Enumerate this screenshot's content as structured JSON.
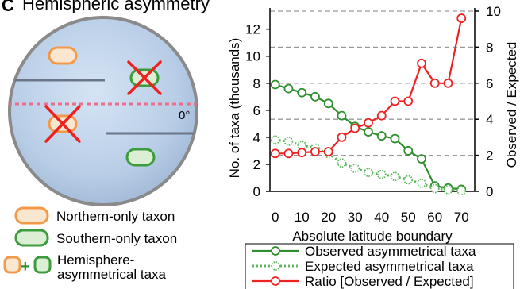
{
  "panel": {
    "label": "C",
    "title": "Hemispheric asymmetry"
  },
  "globe": {
    "equator_label": "0°"
  },
  "taxon_legend": {
    "northern": "Northern-only taxon",
    "southern": "Southern-only taxon",
    "plus": "+",
    "asym_line1": "Hemisphere-",
    "asym_line2": "asymmetrical taxa"
  },
  "colors": {
    "northern": "#f39a4a",
    "southern": "#3b9d3b",
    "ratio": "#ee2222",
    "observed": "#2f8f2f",
    "expected": "#5db85d",
    "cross": "#ee2020"
  },
  "chart_data": {
    "type": "line",
    "xlabel": "Absolute latitude boundary",
    "ylabel": "No. of taxa (thousands)",
    "y2label": "Observed / Expected",
    "xlim": [
      -2,
      75
    ],
    "ylim": [
      0,
      13.333
    ],
    "y2lim": [
      0,
      10
    ],
    "x_ticks": [
      0,
      10,
      20,
      30,
      40,
      50,
      60,
      70
    ],
    "y_ticks": [
      0,
      2,
      4,
      6,
      8,
      10,
      12
    ],
    "y2_ticks": [
      0,
      2,
      4,
      6,
      8,
      10
    ],
    "grid": "horizontal dashed",
    "legend_position": "bottom",
    "series": [
      {
        "name": "Observed asymmetrical taxa",
        "axis": "left",
        "style": "solid",
        "x": [
          0,
          5,
          10,
          15,
          20,
          25,
          30,
          35,
          40,
          45,
          50,
          55,
          60,
          65,
          70
        ],
        "values": [
          7.9,
          7.6,
          7.3,
          7.0,
          6.5,
          5.6,
          4.8,
          4.4,
          4.1,
          3.9,
          3.0,
          2.4,
          0.4,
          0.25,
          0.15
        ]
      },
      {
        "name": "Expected asymmetrical taxa",
        "axis": "left",
        "style": "dotted",
        "x": [
          0,
          5,
          10,
          15,
          20,
          25,
          30,
          35,
          40,
          45,
          50,
          55,
          60,
          65,
          70
        ],
        "values": [
          3.8,
          3.7,
          3.4,
          3.2,
          2.8,
          2.1,
          1.7,
          1.4,
          1.25,
          1.1,
          0.85,
          0.6,
          0.2,
          0.12,
          0.05
        ]
      },
      {
        "name": "Ratio [Observed / Expected]",
        "axis": "right",
        "style": "solid",
        "x": [
          0,
          5,
          10,
          15,
          20,
          25,
          30,
          35,
          40,
          45,
          50,
          55,
          60,
          65,
          70
        ],
        "values": [
          2.1,
          2.1,
          2.15,
          2.2,
          2.2,
          3.0,
          3.5,
          3.8,
          4.2,
          5.0,
          5.0,
          7.1,
          6.0,
          6.0,
          9.6
        ]
      }
    ]
  }
}
